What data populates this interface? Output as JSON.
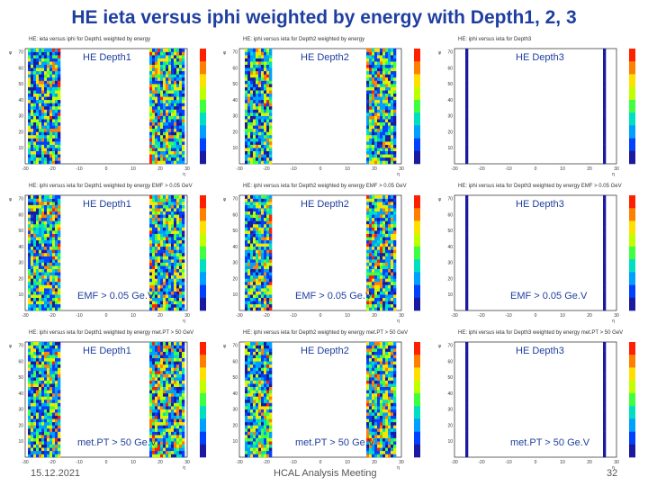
{
  "slide": {
    "title": "HE ieta versus iphi weighted by energy with Depth1, 2, 3",
    "date": "15.12.2021",
    "meeting": "HCAL Analysis Meeting",
    "page_number": "32"
  },
  "chart_data": [
    {
      "type": "heatmap",
      "title": "HE: ieta versus iphi for Depth1 weighted by energy",
      "label": "HE Depth1",
      "cut": ""
    },
    {
      "type": "heatmap",
      "title": "HE: iphi versus ieta for Depth2 weighted by energy",
      "label": "HE Depth2",
      "cut": ""
    },
    {
      "type": "heatmap",
      "title": "HE: iphi versus ieta for Depth3",
      "label": "HE Depth3",
      "cut": ""
    },
    {
      "type": "heatmap",
      "title": "HE: iphi versus ieta for Depth1 weighted by energy EMF > 0.05 GeV",
      "label": "HE Depth1",
      "cut": "EMF > 0.05 Ge.V"
    },
    {
      "type": "heatmap",
      "title": "HE: iphi versus ieta for Depth2 weighted by energy EMF > 0.05 GeV",
      "label": "HE Depth2",
      "cut": "EMF > 0.05 Ge.V"
    },
    {
      "type": "heatmap",
      "title": "HE: iphi versus ieta for Depth3 weighted by energy EMF > 0.05 GeV",
      "label": "HE Depth3",
      "cut": "EMF > 0.05 Ge.V"
    },
    {
      "type": "heatmap",
      "title": "HE: iphi versus ieta for Depth1 weighted by energy met.PT > 50 GeV",
      "label": "HE Depth1",
      "cut": "met.PT > 50 Ge.V"
    },
    {
      "type": "heatmap",
      "title": "HE: iphi versus ieta for Depth2 weighted by energy met.PT > 50 GeV",
      "label": "HE Depth2",
      "cut": "met.PT > 50 Ge.V"
    },
    {
      "type": "heatmap",
      "title": "HE: iphi versus ieta for Depth3 weighted by energy met.PT > 50 GeV",
      "label": "HE Depth3",
      "cut": "met.PT > 50 Ge.V"
    }
  ],
  "axes": {
    "x_ticks": [
      "-30",
      "-20",
      "-10",
      "0",
      "10",
      "20",
      "30"
    ],
    "y_ticks": [
      "10",
      "20",
      "30",
      "40",
      "50",
      "60",
      "70"
    ],
    "x_range": [
      -30,
      30
    ],
    "y_range": [
      0,
      72
    ],
    "x_unit": "η",
    "y_unit": "φ"
  },
  "palette": [
    "#1a1aa0",
    "#0040ff",
    "#00a0ff",
    "#00e0c0",
    "#40ff40",
    "#c0ff00",
    "#ffe000",
    "#ff8000",
    "#ff2000"
  ]
}
